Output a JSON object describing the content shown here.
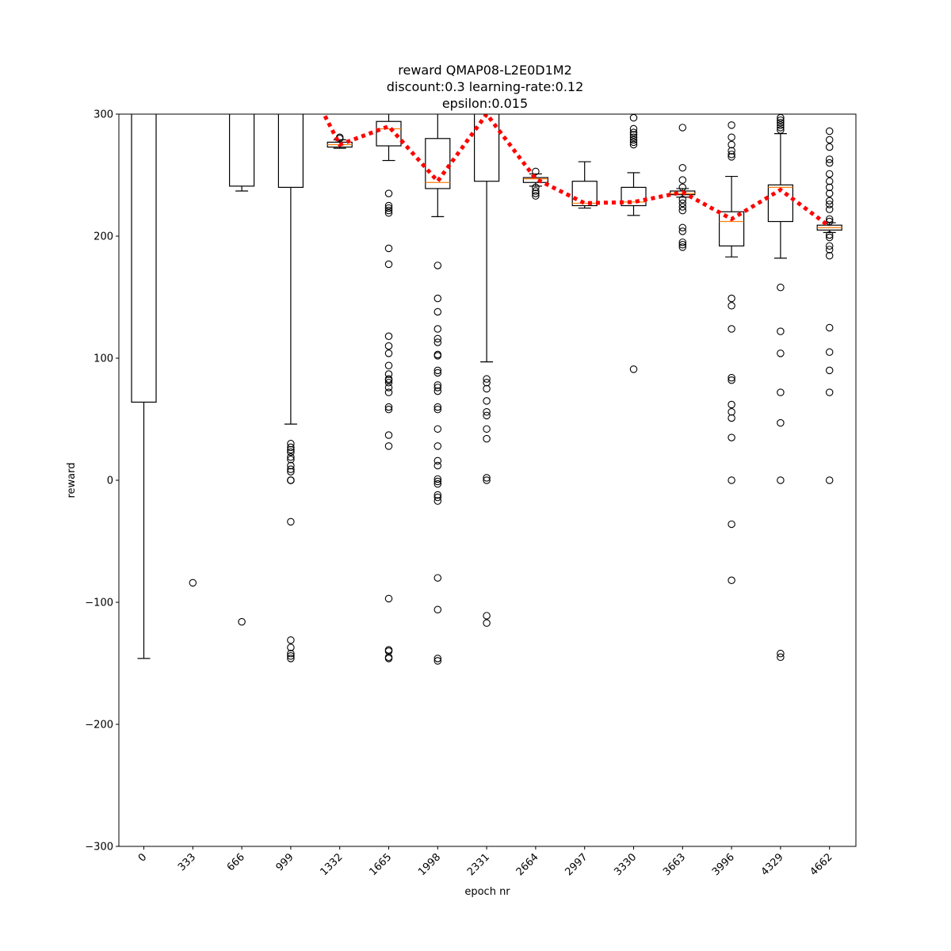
{
  "chart_data": {
    "type": "box",
    "title_lines": [
      "reward QMAP08-L2E0D1M2",
      "discount:0.3 learning-rate:0.12",
      "epsilon:0.015"
    ],
    "xlabel": "epoch nr",
    "ylabel": "reward",
    "ylim": [
      -300,
      300
    ],
    "yticks": [
      -300,
      -200,
      -100,
      0,
      100,
      200,
      300
    ],
    "categories": [
      "0",
      "333",
      "666",
      "999",
      "1332",
      "1665",
      "1998",
      "2331",
      "2664",
      "2997",
      "3330",
      "3663",
      "3996",
      "4329",
      "4662"
    ],
    "boxes": [
      {
        "q1": 64,
        "median": 320,
        "q3": 340,
        "whislo": -146,
        "whishi": 340,
        "fliers": []
      },
      {
        "q1": null,
        "median": null,
        "q3": null,
        "whislo": null,
        "whishi": null,
        "fliers": [
          -84
        ]
      },
      {
        "q1": 241,
        "median": 320,
        "q3": 340,
        "whislo": 237,
        "whishi": 340,
        "fliers": [
          -116
        ]
      },
      {
        "q1": 240,
        "median": 320,
        "q3": 340,
        "whislo": 46,
        "whishi": 340,
        "fliers": [
          30,
          27,
          25,
          23,
          19,
          17,
          12,
          9,
          7,
          0,
          0,
          0,
          -34,
          -131,
          -137,
          -142,
          -144,
          -146
        ]
      },
      {
        "q1": 273,
        "median": 275,
        "q3": 277,
        "whislo": 272,
        "whishi": 279,
        "fliers": [
          280,
          281
        ]
      },
      {
        "q1": 274,
        "median": 288,
        "q3": 294,
        "whislo": 262,
        "whishi": 310,
        "fliers": [
          235,
          225,
          223,
          221,
          219,
          190,
          177,
          118,
          110,
          104,
          94,
          87,
          83,
          82,
          80,
          76,
          72,
          60,
          58,
          37,
          28,
          -97,
          -139,
          -140,
          -145,
          -146
        ]
      },
      {
        "q1": 239,
        "median": 244,
        "q3": 280,
        "whislo": 216,
        "whishi": 320,
        "fliers": [
          176,
          149,
          138,
          124,
          116,
          113,
          103,
          102,
          90,
          88,
          78,
          76,
          73,
          60,
          58,
          42,
          28,
          16,
          12,
          1,
          -1,
          -3,
          -12,
          -14,
          -17,
          -80,
          -106,
          -146,
          -148
        ]
      },
      {
        "q1": 245,
        "median": 320,
        "q3": 340,
        "whislo": 97,
        "whishi": 340,
        "fliers": [
          83,
          80,
          75,
          65,
          56,
          53,
          42,
          34,
          2,
          0,
          -111,
          -117
        ]
      },
      {
        "q1": 244,
        "median": 247,
        "q3": 248,
        "whislo": 241,
        "whishi": 251,
        "fliers": [
          253,
          240,
          237,
          235,
          233
        ]
      },
      {
        "q1": 225,
        "median": 227,
        "q3": 245,
        "whislo": 223,
        "whishi": 261,
        "fliers": []
      },
      {
        "q1": 225,
        "median": 228,
        "q3": 240,
        "whislo": 217,
        "whishi": 252,
        "fliers": [
          297,
          288,
          285,
          283,
          281,
          279,
          277,
          275,
          91
        ]
      },
      {
        "q1": 234,
        "median": 235,
        "q3": 237,
        "whislo": 232,
        "whishi": 239,
        "fliers": [
          289,
          256,
          246,
          240,
          230,
          227,
          224,
          221,
          207,
          204,
          195,
          193,
          191
        ]
      },
      {
        "q1": 192,
        "median": 212,
        "q3": 220,
        "whislo": 183,
        "whishi": 249,
        "fliers": [
          291,
          281,
          275,
          270,
          267,
          265,
          149,
          143,
          124,
          84,
          82,
          62,
          56,
          51,
          35,
          0,
          -36,
          -82
        ]
      },
      {
        "q1": 212,
        "median": 240,
        "q3": 242,
        "whislo": 182,
        "whishi": 284,
        "fliers": [
          297,
          295,
          293,
          291,
          289,
          287,
          158,
          122,
          104,
          72,
          47,
          0,
          -142,
          -145
        ]
      },
      {
        "q1": 205,
        "median": 207,
        "q3": 209,
        "whislo": 203,
        "whishi": 211,
        "fliers": [
          286,
          279,
          273,
          263,
          260,
          251,
          245,
          240,
          235,
          229,
          226,
          222,
          214,
          212,
          201,
          199,
          192,
          189,
          184,
          125,
          105,
          90,
          72,
          0
        ]
      }
    ],
    "mean_line": {
      "color": "#ff0000",
      "style": "dotted",
      "values": [
        null,
        null,
        null,
        null,
        275,
        290,
        245,
        300,
        247,
        227,
        228,
        236,
        214,
        238,
        208
      ],
      "offchart_hint": [
        null,
        null,
        null,
        null,
        310,
        null,
        null,
        null,
        null,
        null,
        null,
        null,
        null,
        null,
        null
      ]
    },
    "colors": {
      "box": "#000000",
      "median": "#ff7f0e",
      "mean": "#ff0000"
    }
  }
}
